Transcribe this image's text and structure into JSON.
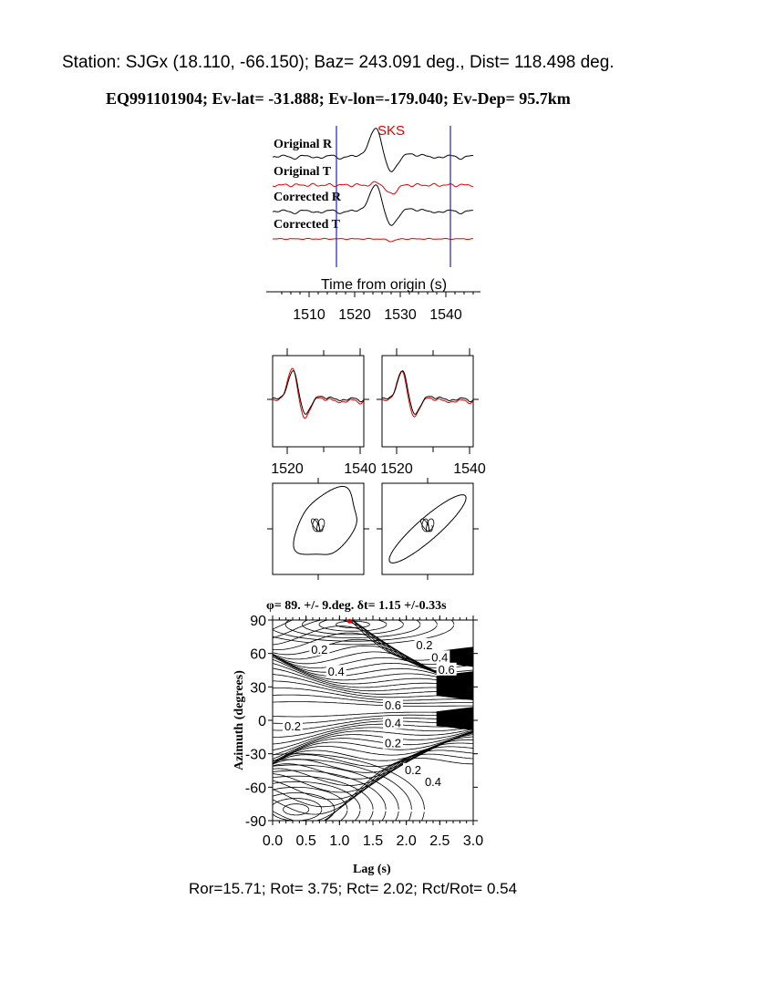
{
  "header": {
    "station_line": "Station: SJGx (18.110,  -66.150); Baz=  243.091 deg., Dist=  118.498 deg.",
    "event_line": "EQ991101904; Ev-lat= -31.888; Ev-lon=-179.040; Ev-Dep= 95.7km"
  },
  "footer": {
    "ratio_line": "Ror=15.71; Rot= 3.75; Rct= 2.02; Rct/Rot= 0.54"
  },
  "colors": {
    "trace_r": "#000000",
    "trace_t": "#e00000",
    "window": "#2222bb",
    "axis": "#000000"
  },
  "chart_data": [
    {
      "type": "line",
      "id": "seismograms",
      "phase_label": "SKS",
      "xlabel": "Time from origin (s)",
      "x_ticks": [
        1510,
        1520,
        1530,
        1540
      ],
      "xlim": [
        1502,
        1546
      ],
      "window": [
        1516,
        1541
      ],
      "traces": [
        {
          "name": "Original R",
          "kind": "R",
          "color": "#000000"
        },
        {
          "name": "Original T",
          "kind": "T",
          "color": "#e00000"
        },
        {
          "name": "Corrected R",
          "kind": "R",
          "color": "#000000"
        },
        {
          "name": "Corrected T",
          "kind": "Tc",
          "color": "#e00000"
        }
      ]
    },
    {
      "type": "line",
      "id": "waveform-overlays",
      "panels": [
        {
          "name": "original",
          "x_ticks": [
            1520,
            1540
          ],
          "xlim": [
            1516,
            1541
          ]
        },
        {
          "name": "corrected",
          "x_ticks": [
            1520,
            1540
          ],
          "xlim": [
            1516,
            1541
          ]
        }
      ]
    },
    {
      "type": "scatter",
      "id": "particle-motion",
      "panels": [
        {
          "name": "original"
        },
        {
          "name": "corrected"
        }
      ]
    },
    {
      "type": "heatmap",
      "id": "misfit-contours",
      "title": "φ= 89. +/- 9.deg.  δt= 1.15 +/-0.33s",
      "xlabel": "Lag (s)",
      "ylabel": "Azimuth (degrees)",
      "xlim": [
        0,
        3.0
      ],
      "ylim": [
        -90,
        90
      ],
      "x_ticks": [
        "0.0",
        "0.5",
        "1.0",
        "1.5",
        "2.0",
        "2.5",
        "3.0"
      ],
      "y_ticks": [
        "90",
        "60",
        "30",
        "0",
        "-30",
        "-60",
        "-90"
      ],
      "best_fit": {
        "lag": 1.15,
        "azimuth": 89
      },
      "contour_labels": [
        {
          "text": "0.2",
          "lag": 0.7,
          "azimuth": 64
        },
        {
          "text": "0.2",
          "lag": 2.27,
          "azimuth": 68
        },
        {
          "text": "0.4",
          "lag": 2.5,
          "azimuth": 57
        },
        {
          "text": "0.6",
          "lag": 2.6,
          "azimuth": 46
        },
        {
          "text": "0.4",
          "lag": 0.95,
          "azimuth": 44
        },
        {
          "text": "0.6",
          "lag": 1.8,
          "azimuth": 14
        },
        {
          "text": "0.4",
          "lag": 1.8,
          "azimuth": -2
        },
        {
          "text": "0.2",
          "lag": 1.8,
          "azimuth": -20
        },
        {
          "text": "0.2",
          "lag": 0.3,
          "azimuth": -5
        },
        {
          "text": "0.2",
          "lag": 2.1,
          "azimuth": -44
        },
        {
          "text": "0.4",
          "lag": 2.4,
          "azimuth": -55
        }
      ]
    }
  ]
}
